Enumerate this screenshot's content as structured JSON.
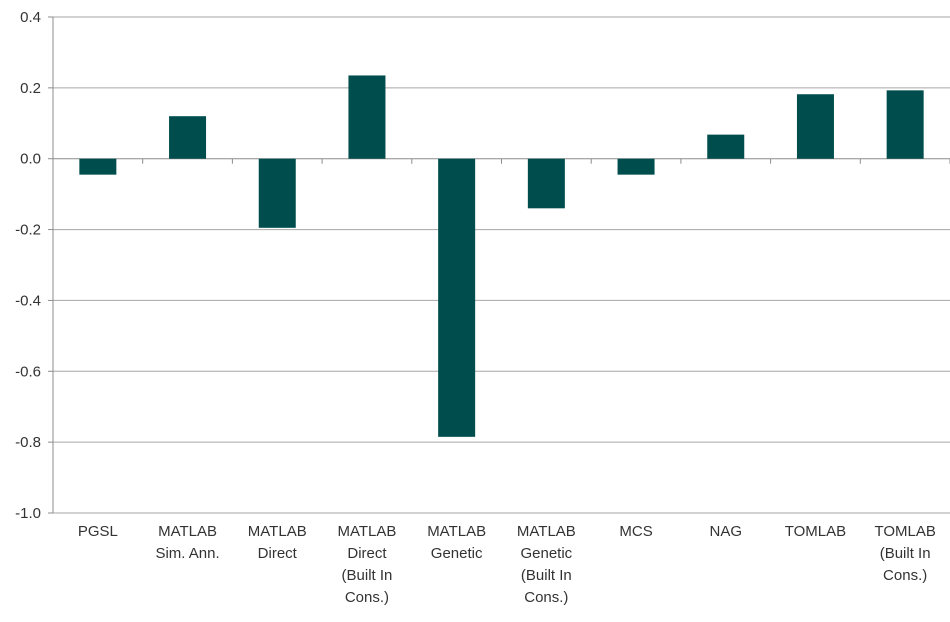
{
  "chart_data": {
    "type": "bar",
    "categories": [
      [
        "PGSL"
      ],
      [
        "MATLAB",
        "Sim. Ann."
      ],
      [
        "MATLAB",
        "Direct"
      ],
      [
        "MATLAB",
        "Direct",
        "(Built In",
        "Cons.)"
      ],
      [
        "MATLAB",
        "Genetic"
      ],
      [
        "MATLAB",
        "Genetic",
        "(Built In",
        "Cons.)"
      ],
      [
        "MCS"
      ],
      [
        "NAG"
      ],
      [
        "TOMLAB"
      ],
      [
        "TOMLAB",
        "(Built In",
        "Cons.)"
      ]
    ],
    "values": [
      -0.045,
      0.12,
      -0.195,
      0.235,
      -0.785,
      -0.14,
      -0.045,
      0.068,
      0.182,
      0.193
    ],
    "yticks": [
      "0.4",
      "0.2",
      "0.0",
      "-0.2",
      "-0.4",
      "-0.6",
      "-0.8",
      "-1.0"
    ],
    "ylim": [
      -1.0,
      0.4
    ],
    "grid": true,
    "bar_color": "#004d4d"
  }
}
